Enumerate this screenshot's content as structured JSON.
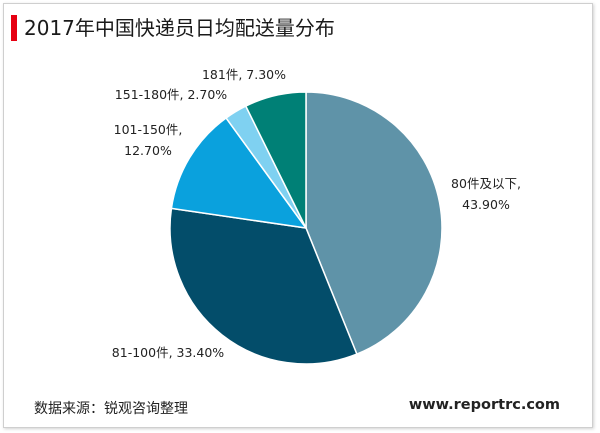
{
  "header": {
    "title": "2017年中国快递员日均配送量分布"
  },
  "footer": {
    "source": "数据来源：锐观咨询整理",
    "website": "www.reportrc.com"
  },
  "colors": {
    "accent_bar": "#e60012"
  },
  "chart_data": {
    "type": "pie",
    "title": "2017年中国快递员日均配送量分布",
    "slices": [
      {
        "label": "80件及以下",
        "percent_text": "43.90%",
        "value": 43.9,
        "color": "#5f93a8"
      },
      {
        "label": "81-100件",
        "percent_text": "33.40%",
        "value": 33.4,
        "color": "#034d6a"
      },
      {
        "label": "101-150件",
        "percent_text": "12.70%",
        "value": 12.7,
        "color": "#0aa1dd"
      },
      {
        "label": "151-180件",
        "percent_text": "2.70%",
        "value": 2.7,
        "color": "#7fd1f1"
      },
      {
        "label": "181件",
        "percent_text": "7.30%",
        "value": 7.3,
        "color": "#008076"
      }
    ],
    "start_angle_deg": 0,
    "direction": "clockwise",
    "legend": "none"
  }
}
